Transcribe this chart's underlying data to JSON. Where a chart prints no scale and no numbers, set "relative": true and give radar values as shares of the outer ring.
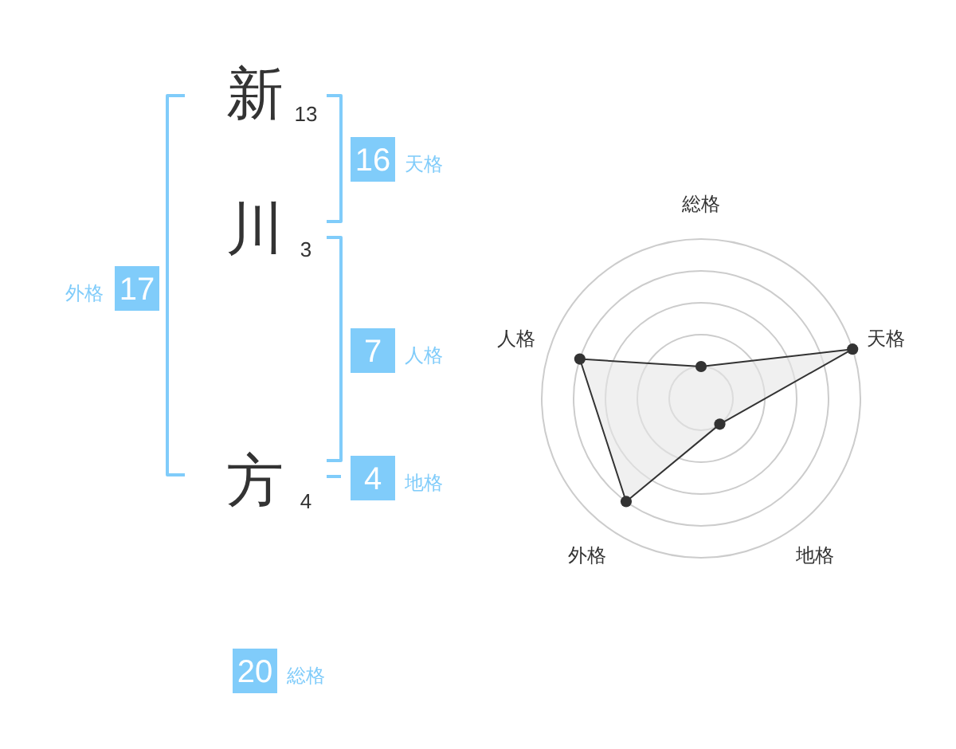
{
  "chart_data": [
    {
      "type": "other",
      "categories": [
        "天格",
        "人格",
        "地格",
        "外格",
        "総格"
      ],
      "values": [
        16,
        7,
        4,
        17,
        20
      ],
      "colors": [
        "#80ccfa",
        "#80ccfa",
        "#80ccfa",
        "#80ccfa",
        "#80ccfa"
      ],
      "data_labels": true,
      "annotations": [
        "新",
        "13",
        "川",
        "3",
        "方",
        "4"
      ]
    },
    {
      "type": "radar",
      "categories": [
        "総格",
        "天格",
        "地格",
        "外格",
        "人格"
      ],
      "relative": true,
      "grid": true,
      "marker": "circle",
      "series": [
        {
          "color": "#333333",
          "values": [
            0.2,
            1,
            0.2,
            0.8,
            0.8
          ]
        }
      ]
    }
  ]
}
